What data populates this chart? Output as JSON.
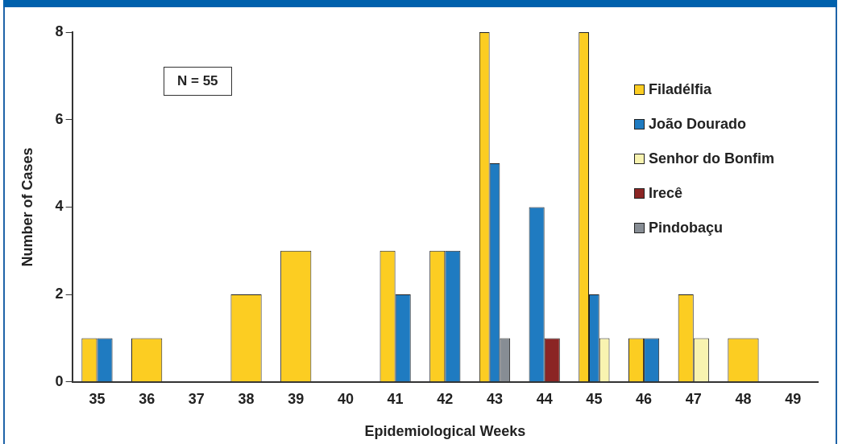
{
  "chart_data": {
    "type": "bar",
    "xlabel": "Epidemiological Weeks",
    "ylabel": "Number of Cases",
    "categories": [
      "35",
      "36",
      "37",
      "38",
      "39",
      "40",
      "41",
      "42",
      "43",
      "44",
      "45",
      "46",
      "47",
      "48",
      "49"
    ],
    "series": [
      {
        "name": "Filadélfia",
        "color": "#fccd22",
        "values": [
          1,
          1,
          null,
          2,
          3,
          null,
          3,
          3,
          8,
          null,
          8,
          1,
          2,
          1,
          null
        ]
      },
      {
        "name": "João Dourado",
        "color": "#1f7bc1",
        "values": [
          1,
          null,
          null,
          null,
          null,
          null,
          2,
          3,
          5,
          4,
          2,
          1,
          null,
          null,
          null
        ]
      },
      {
        "name": "Senhor do Bonfim",
        "color": "#f8f3b0",
        "values": [
          null,
          null,
          null,
          null,
          null,
          null,
          null,
          null,
          null,
          null,
          1,
          null,
          1,
          null,
          null
        ]
      },
      {
        "name": "Irecê",
        "color": "#8b2524",
        "values": [
          null,
          null,
          null,
          null,
          null,
          null,
          null,
          null,
          null,
          1,
          null,
          null,
          null,
          null,
          null
        ]
      },
      {
        "name": "Pindobaçu",
        "color": "#878d94",
        "values": [
          null,
          null,
          null,
          null,
          null,
          null,
          null,
          null,
          1,
          null,
          null,
          null,
          null,
          null,
          null
        ]
      }
    ],
    "ylim": [
      0,
      8
    ],
    "yticks": [
      0,
      2,
      4,
      6,
      8
    ],
    "grid": false,
    "legend": "right",
    "annotations": [
      "N = 55"
    ]
  }
}
